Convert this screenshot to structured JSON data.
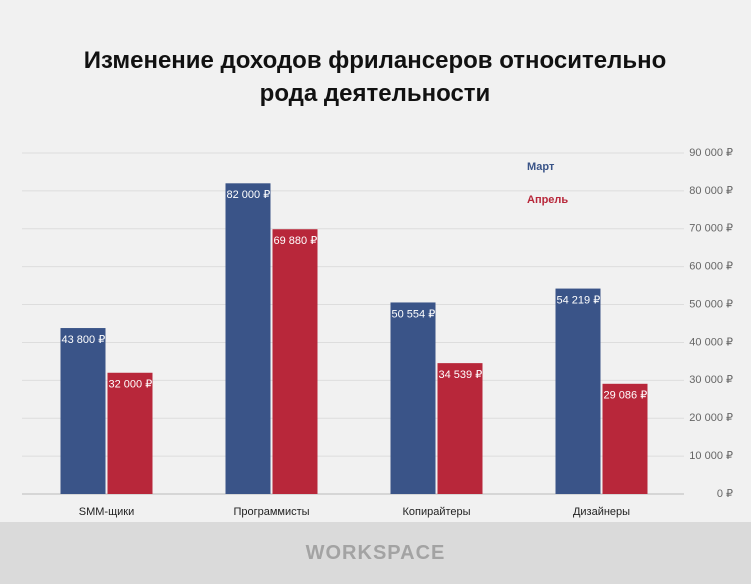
{
  "chart_data": {
    "type": "bar",
    "title": "Изменение доходов фрилансеров относительно рода деятельности",
    "categories": [
      "SMM-щики",
      "Программисты",
      "Копирайтеры",
      "Дизайнеры"
    ],
    "series": [
      {
        "name": "Март",
        "color": "#3a5488",
        "values": [
          43800,
          82000,
          50554,
          54219
        ],
        "value_labels": [
          "43 800 ₽",
          "82 000 ₽",
          "50 554 ₽",
          "54 219 ₽"
        ]
      },
      {
        "name": "Апрель",
        "color": "#b8273a",
        "values": [
          32000,
          69880,
          34539,
          29086
        ],
        "value_labels": [
          "32 000 ₽",
          "69 880 ₽",
          "34 539 ₽",
          "29 086 ₽"
        ]
      }
    ],
    "ylim": [
      0,
      90000
    ],
    "yticks": [
      {
        "value": 0,
        "label": "0 ₽"
      },
      {
        "value": 10000,
        "label": "10 000 ₽"
      },
      {
        "value": 20000,
        "label": "20 000 ₽"
      },
      {
        "value": 30000,
        "label": "30 000 ₽"
      },
      {
        "value": 40000,
        "label": "40 000 ₽"
      },
      {
        "value": 50000,
        "label": "50 000 ₽"
      },
      {
        "value": 60000,
        "label": "60 000 ₽"
      },
      {
        "value": 70000,
        "label": "70 000 ₽"
      },
      {
        "value": 80000,
        "label": "80 000 ₽"
      },
      {
        "value": 90000,
        "label": "90 000 ₽"
      }
    ],
    "grid": true,
    "y_axis_side": "right",
    "legend_position": "top-right"
  },
  "footer": {
    "logo": "WORKSPACE"
  }
}
